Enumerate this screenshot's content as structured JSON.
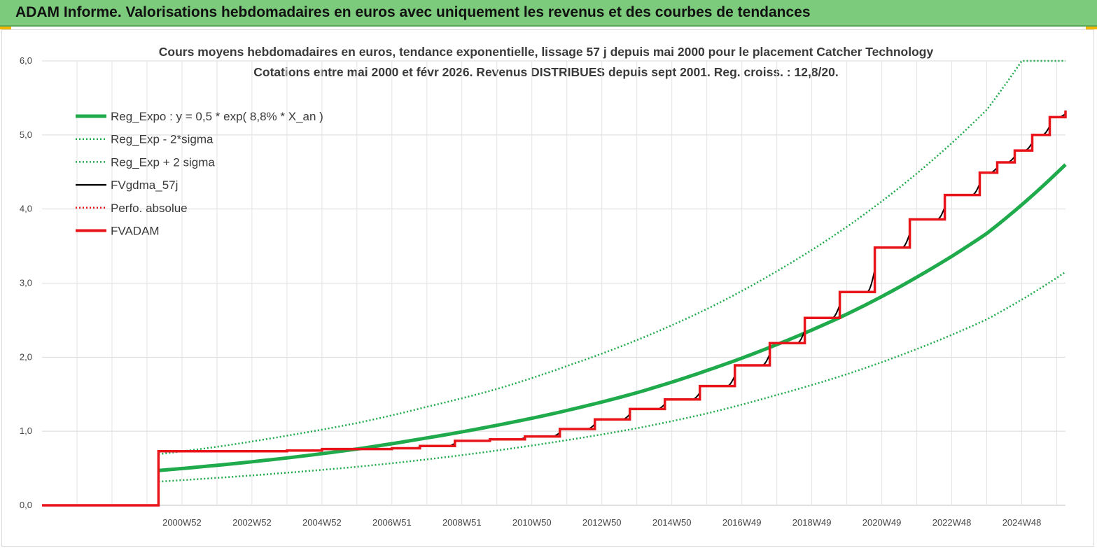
{
  "header": {
    "title": "ADAM Informe. Valorisations hebdomadaires en euros avec uniquement les revenus et des courbes de tendances"
  },
  "colors": {
    "banner": "#7ccb7c",
    "green": "#1faa4b",
    "red": "#e8141a",
    "black": "#000000"
  },
  "chart_data": {
    "type": "line",
    "title": "Cours moyens hebdomadaires en euros, tendance exponentielle, lissage 57 j depuis mai 2000 pour le placement Catcher Technology",
    "subtitle": "Cotations entre mai 2000 et févr 2026. Revenus DISTRIBUES depuis sept 2001. Reg. croiss. : 12,8/20.",
    "ylim": [
      0,
      6
    ],
    "yticks": [
      "0,0",
      "1,0",
      "2,0",
      "3,0",
      "4,0",
      "5,0",
      "6,0"
    ],
    "xlim": [
      1997.0,
      2026.25
    ],
    "xticks": [
      {
        "x": 2001.0,
        "label": "2000W52"
      },
      {
        "x": 2003.0,
        "label": "2002W52"
      },
      {
        "x": 2005.0,
        "label": "2004W52"
      },
      {
        "x": 2007.0,
        "label": "2006W51"
      },
      {
        "x": 2009.0,
        "label": "2008W51"
      },
      {
        "x": 2011.0,
        "label": "2010W50"
      },
      {
        "x": 2013.0,
        "label": "2012W50"
      },
      {
        "x": 2015.0,
        "label": "2014W50"
      },
      {
        "x": 2017.0,
        "label": "2016W49"
      },
      {
        "x": 2019.0,
        "label": "2018W49"
      },
      {
        "x": 2021.0,
        "label": "2020W49"
      },
      {
        "x": 2023.0,
        "label": "2022W48"
      },
      {
        "x": 2025.0,
        "label": "2024W48"
      }
    ],
    "grid": true,
    "legend": "top-left",
    "start_x": 2000.33,
    "series": [
      {
        "name": "Reg_Expo : y = 0,5 * exp( 8,8% *  X_an )",
        "style": "solid-thick",
        "color": "#1faa4b",
        "x": [
          2000.33,
          2002,
          2004,
          2006,
          2008,
          2010,
          2012,
          2014,
          2016,
          2018,
          2020,
          2022,
          2024,
          2026.25
        ],
        "y": [
          0.47,
          0.54,
          0.64,
          0.76,
          0.91,
          1.08,
          1.28,
          1.52,
          1.82,
          2.17,
          2.58,
          3.08,
          3.67,
          4.6
        ]
      },
      {
        "name": "Reg_Exp - 2*sigma",
        "style": "dotted",
        "color": "#1faa4b",
        "x": [
          2000.33,
          2002,
          2004,
          2006,
          2008,
          2010,
          2012,
          2014,
          2016,
          2018,
          2020,
          2022,
          2024,
          2026.25
        ],
        "y": [
          0.32,
          0.37,
          0.44,
          0.52,
          0.62,
          0.74,
          0.88,
          1.04,
          1.24,
          1.49,
          1.77,
          2.11,
          2.51,
          3.15
        ]
      },
      {
        "name": "Reg_Exp + 2 sigma",
        "style": "dotted",
        "color": "#1faa4b",
        "x": [
          2000.33,
          2002,
          2004,
          2006,
          2008,
          2010,
          2012,
          2014,
          2016,
          2018,
          2020,
          2022,
          2024,
          2025,
          2026.25
        ],
        "y": [
          0.69,
          0.79,
          0.94,
          1.11,
          1.33,
          1.57,
          1.88,
          2.23,
          2.65,
          3.16,
          3.76,
          4.48,
          5.34,
          6.0,
          6.0
        ]
      },
      {
        "name": "FVgdma_57j",
        "style": "solid-thin",
        "color": "#000000"
      },
      {
        "name": "Perfo. absolue",
        "style": "dotted",
        "color": "#e8141a"
      },
      {
        "name": "FVADAM",
        "style": "steps",
        "color": "#e8141a",
        "steps": [
          {
            "x": 1997.0,
            "y": 0.0
          },
          {
            "x": 2000.33,
            "y": 0.73
          },
          {
            "x": 2004.0,
            "y": 0.74
          },
          {
            "x": 2005.0,
            "y": 0.76
          },
          {
            "x": 2007.0,
            "y": 0.77
          },
          {
            "x": 2007.8,
            "y": 0.8
          },
          {
            "x": 2008.8,
            "y": 0.87
          },
          {
            "x": 2009.8,
            "y": 0.89
          },
          {
            "x": 2010.8,
            "y": 0.93
          },
          {
            "x": 2011.8,
            "y": 1.03
          },
          {
            "x": 2012.8,
            "y": 1.16
          },
          {
            "x": 2013.8,
            "y": 1.3
          },
          {
            "x": 2014.8,
            "y": 1.43
          },
          {
            "x": 2015.8,
            "y": 1.61
          },
          {
            "x": 2016.8,
            "y": 1.89
          },
          {
            "x": 2017.8,
            "y": 2.19
          },
          {
            "x": 2018.8,
            "y": 2.53
          },
          {
            "x": 2019.8,
            "y": 2.88
          },
          {
            "x": 2020.8,
            "y": 3.48
          },
          {
            "x": 2021.8,
            "y": 3.86
          },
          {
            "x": 2022.8,
            "y": 4.19
          },
          {
            "x": 2023.8,
            "y": 4.49
          },
          {
            "x": 2024.3,
            "y": 4.63
          },
          {
            "x": 2024.8,
            "y": 4.79
          },
          {
            "x": 2025.3,
            "y": 5.0
          },
          {
            "x": 2025.8,
            "y": 5.24
          },
          {
            "x": 2026.25,
            "y": 5.33
          }
        ]
      }
    ]
  }
}
